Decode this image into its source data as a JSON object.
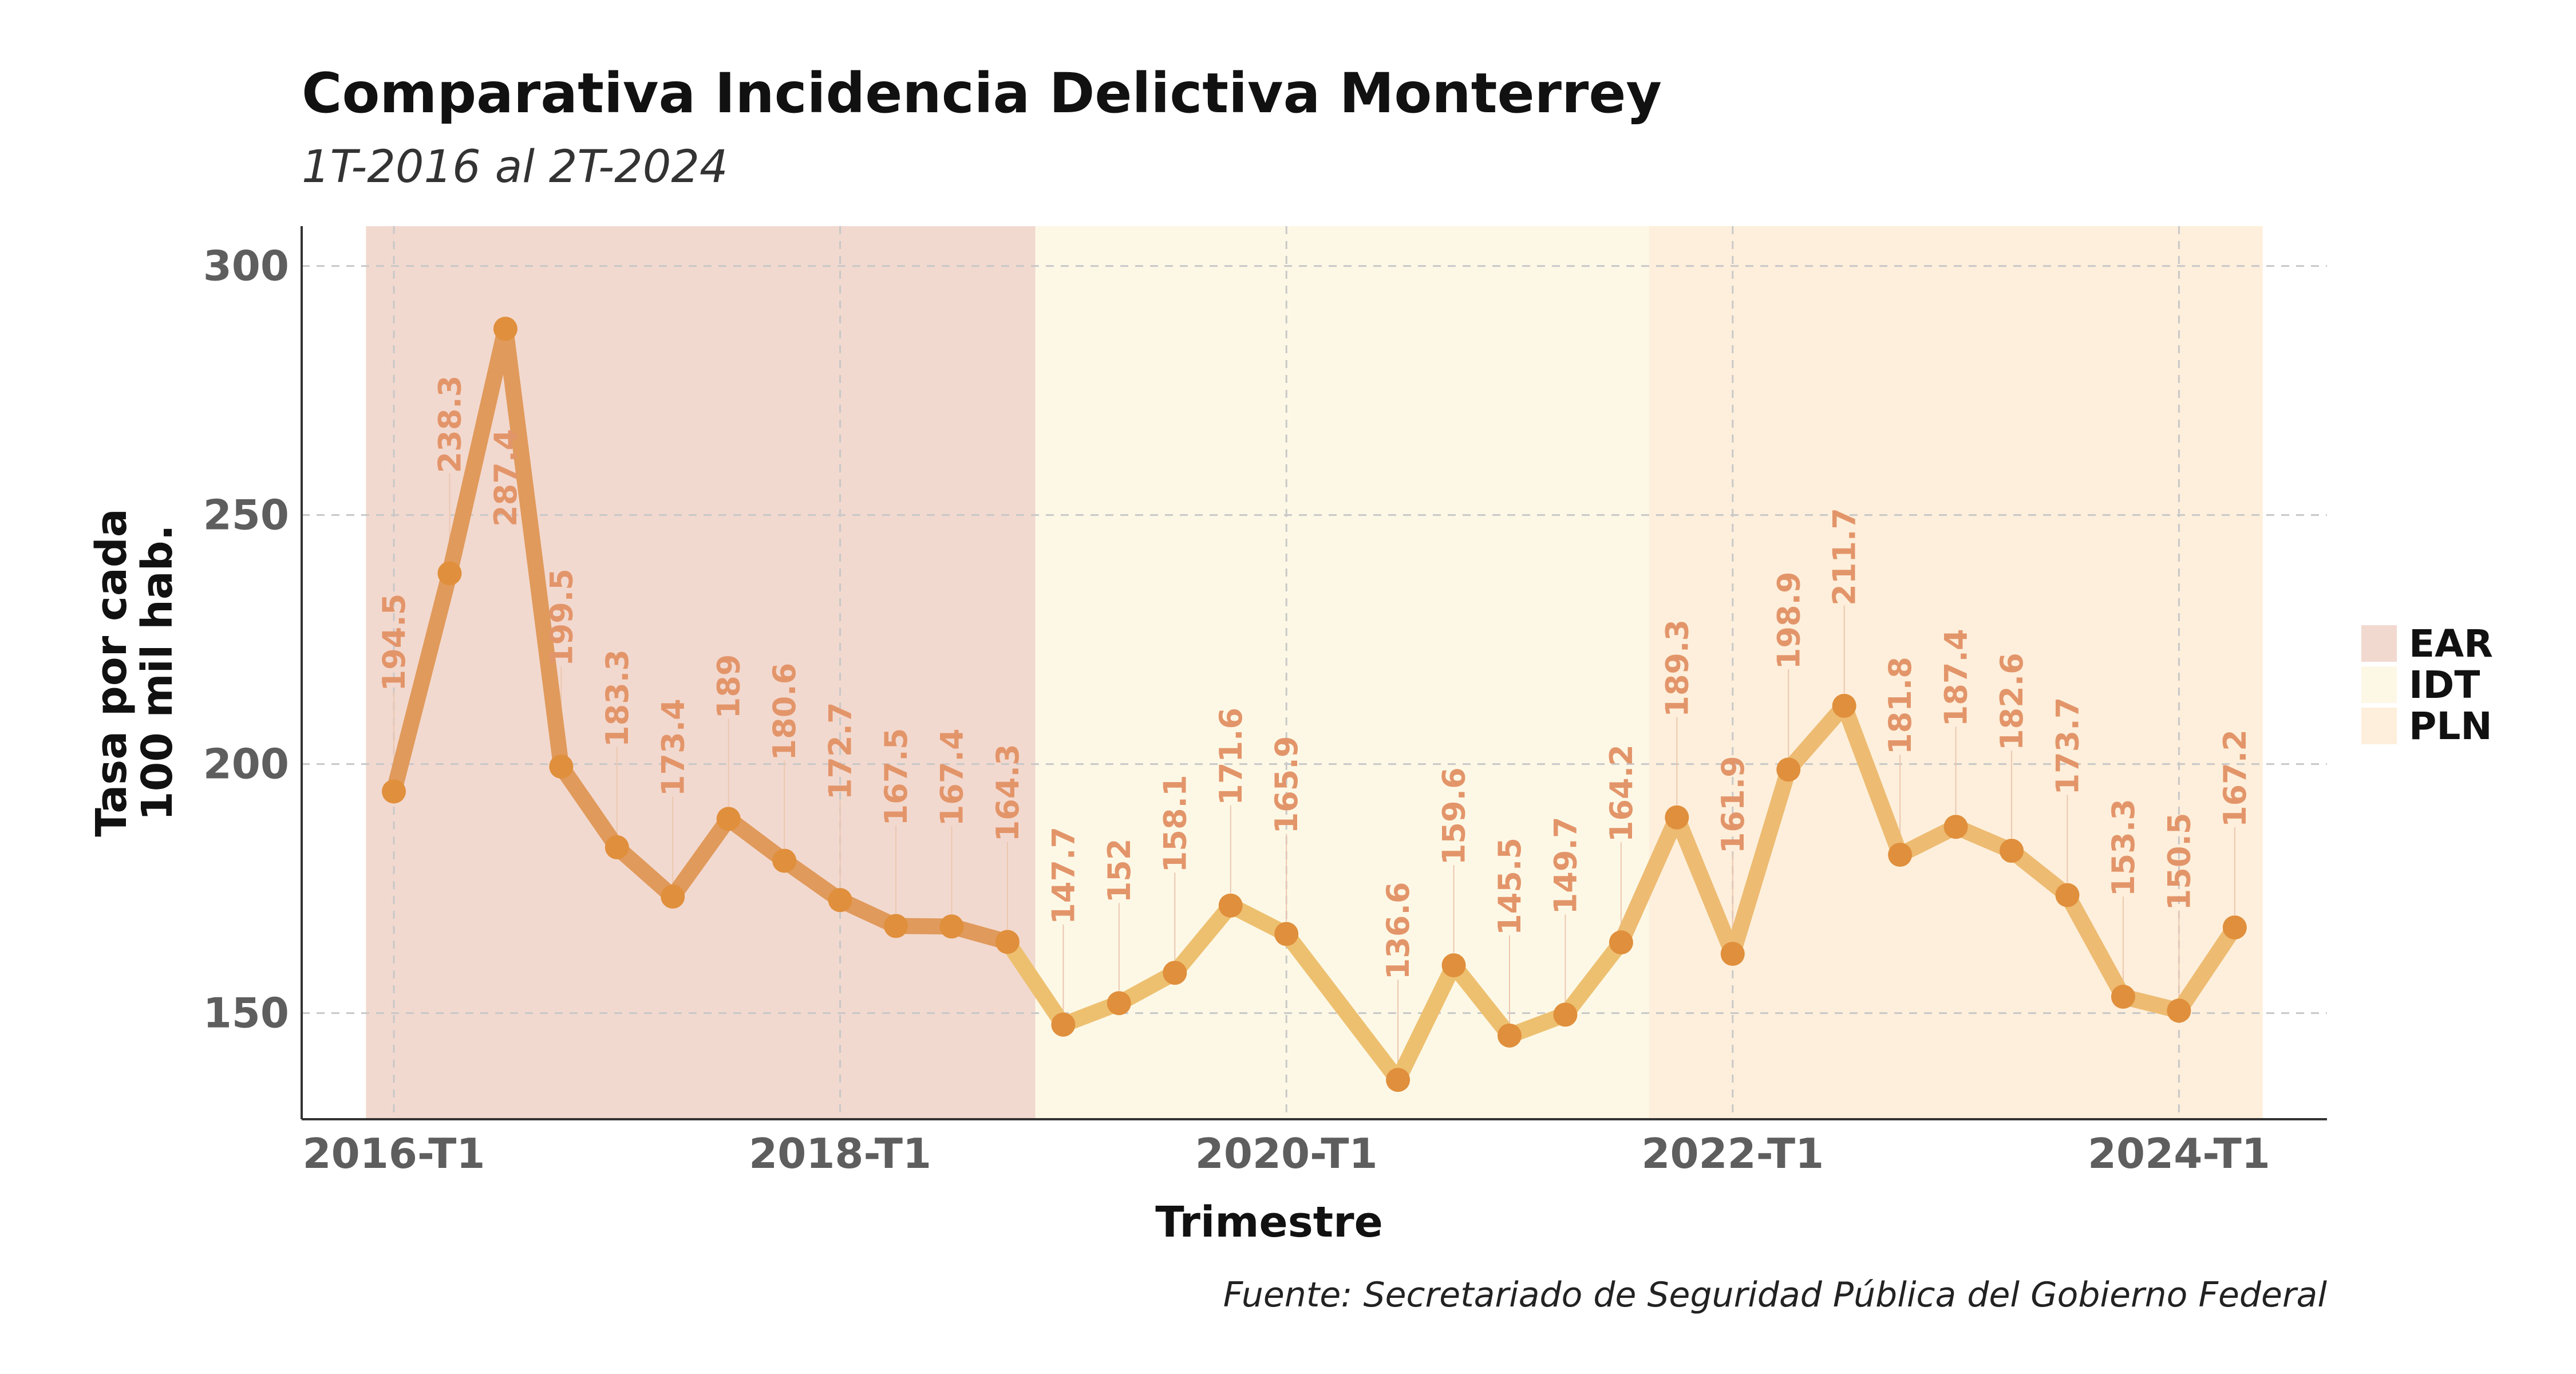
{
  "chart_data": {
    "type": "line",
    "title": "Comparativa Incidencia Delictiva Monterrey",
    "subtitle": "1T-2016 al 2T-2024",
    "xlabel": "Trimestre",
    "ylabel": "Tasa por cada 100 mil hab.",
    "ylabel_lines": [
      "Tasa por cada",
      "100 mil hab."
    ],
    "caption": "Fuente: Secretariado de Seguridad Pública del Gobierno Federal",
    "x": [
      "2016-T1",
      "2016-T2",
      "2016-T3",
      "2016-T4",
      "2017-T1",
      "2017-T2",
      "2017-T3",
      "2017-T4",
      "2018-T1",
      "2018-T2",
      "2018-T3",
      "2018-T4",
      "2019-T1",
      "2019-T2",
      "2019-T3",
      "2019-T4",
      "2020-T1",
      "2020-T2",
      "2020-T3",
      "2020-T4",
      "2021-T1",
      "2021-T2",
      "2021-T3",
      "2021-T4",
      "2022-T1",
      "2022-T2",
      "2022-T3",
      "2022-T4",
      "2023-T1",
      "2023-T2",
      "2023-T3",
      "2023-T4",
      "2024-T1",
      "2024-T2"
    ],
    "values": [
      194.5,
      238.3,
      287.4,
      199.5,
      183.3,
      173.4,
      189,
      180.6,
      172.7,
      167.5,
      167.4,
      164.3,
      147.7,
      152,
      158.1,
      171.6,
      165.9,
      null,
      136.6,
      159.6,
      145.5,
      149.7,
      164.2,
      189.3,
      161.9,
      198.9,
      211.7,
      181.8,
      187.4,
      182.6,
      173.7,
      153.3,
      150.5,
      167.2
    ],
    "labels": [
      "194.5",
      "238.3",
      "287.4",
      "199.5",
      "183.3",
      "173.4",
      "189",
      "180.6",
      "172.7",
      "167.5",
      "167.4",
      "164.3",
      "147.7",
      "152",
      "158.1",
      "171.6",
      "165.9",
      "",
      "136.6",
      "159.6",
      "145.5",
      "149.7",
      "164.2",
      "189.3",
      "161.9",
      "198.9",
      "211.7",
      "181.8",
      "187.4",
      "182.6",
      "173.7",
      "153.3",
      "150.5",
      "167.2"
    ],
    "x_ticks": [
      "2016-T1",
      "2018-T1",
      "2020-T1",
      "2022-T1",
      "2024-T1"
    ],
    "y_ticks": [
      150,
      200,
      250,
      300
    ],
    "ylim": [
      128.7,
      308
    ],
    "grid": true,
    "legend_position": "right",
    "periods": [
      {
        "name": "EAR",
        "start": "2016-T1",
        "end": "2018-T4",
        "color": "#f2d9cf"
      },
      {
        "name": "IDT",
        "start": "2019-T1",
        "end": "2021-T3",
        "color": "#fdf8e6"
      },
      {
        "name": "PLN",
        "start": "2021-T4",
        "end": "2024-T2",
        "color": "#fdefdb"
      }
    ],
    "period_line_colors": {
      "EAR": "#e09a5c",
      "IDT": "#edc070",
      "PLN": "#edbb72"
    },
    "point_color": "#e08f3c",
    "label_color": "#e3956a"
  }
}
